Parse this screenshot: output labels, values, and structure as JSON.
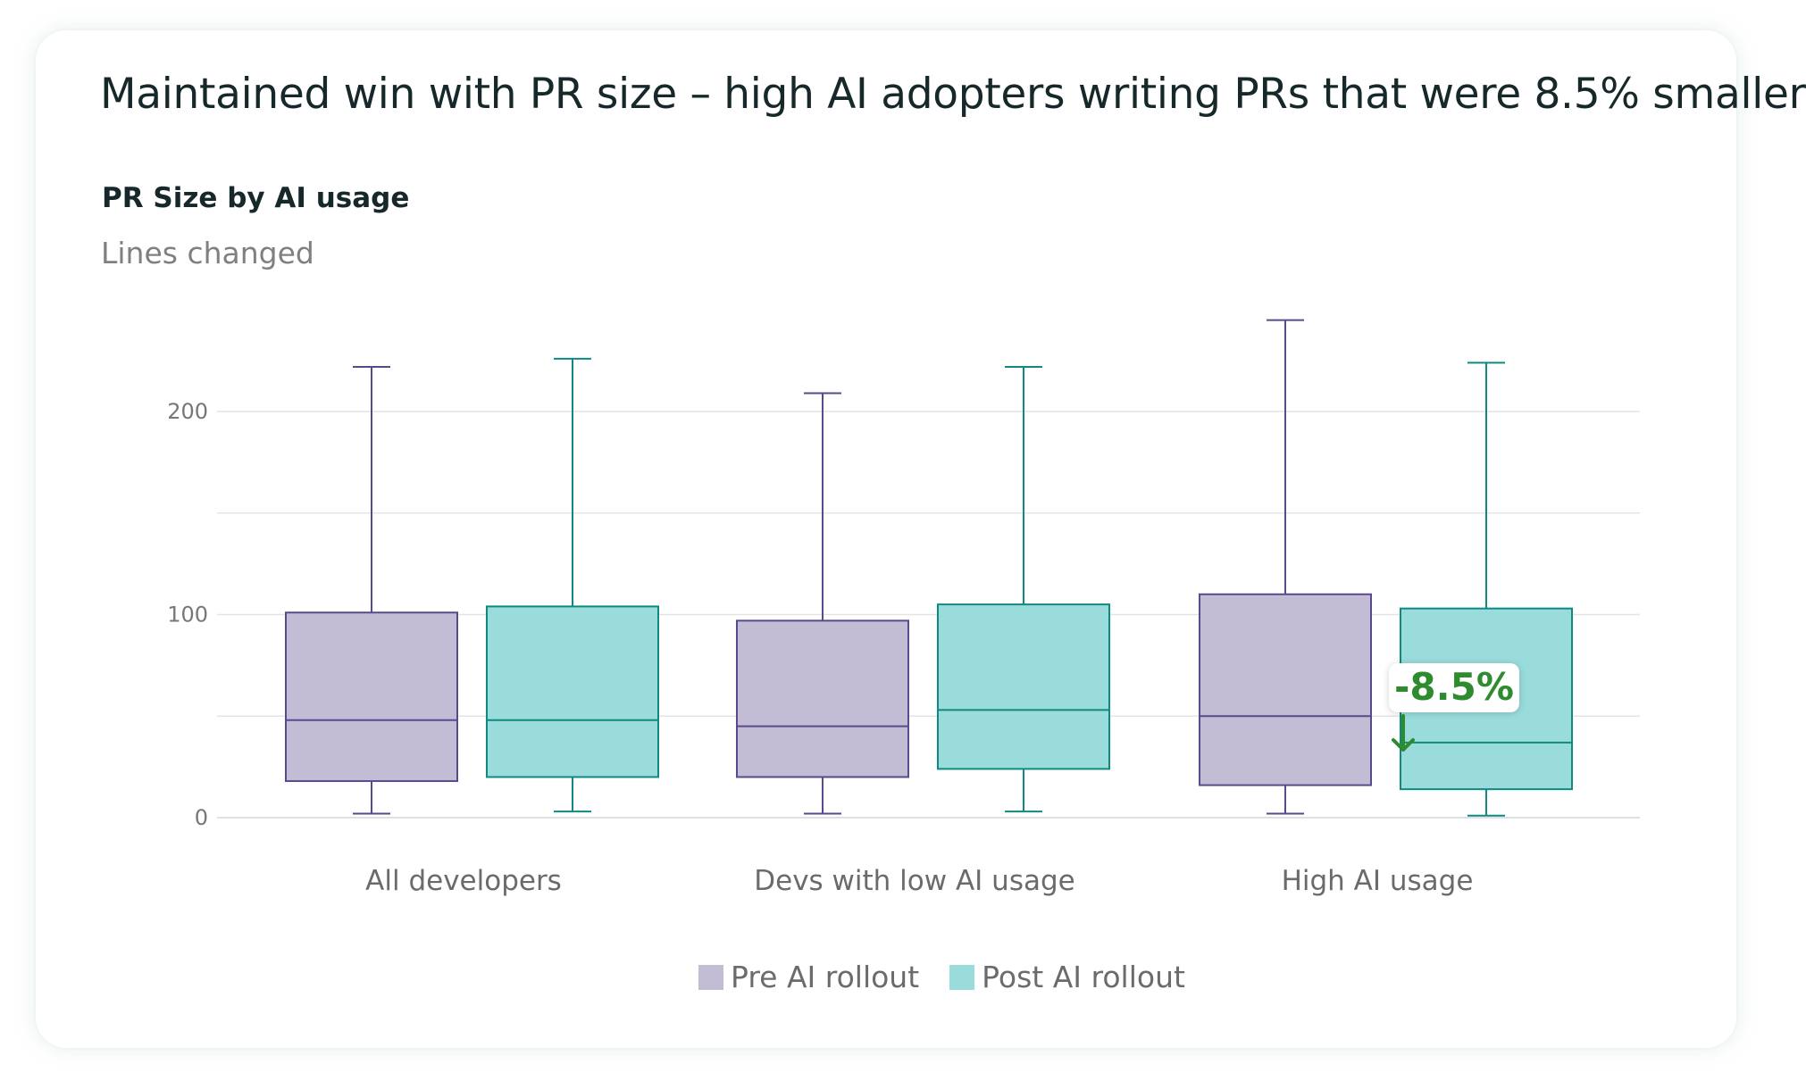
{
  "title": "Maintained win with PR size – high AI adopters writing PRs that were 8.5% smaller",
  "chart_data": {
    "type": "boxplot",
    "title": "PR Size by AI usage",
    "ylabel": "Lines changed",
    "xlabel": "",
    "ylim": [
      0,
      245
    ],
    "yticks": [
      0,
      100,
      200
    ],
    "grid": true,
    "categories": [
      "All developers",
      "Devs with low AI usage",
      "High AI usage"
    ],
    "series": [
      {
        "name": "Pre AI rollout",
        "color": "#c2bcd4",
        "stroke": "#5b4a8b",
        "boxes": [
          {
            "min": 2,
            "q1": 18,
            "median": 48,
            "q3": 101,
            "max": 222
          },
          {
            "min": 2,
            "q1": 20,
            "median": 45,
            "q3": 97,
            "max": 209
          },
          {
            "min": 2,
            "q1": 16,
            "median": 50,
            "q3": 110,
            "max": 245
          }
        ]
      },
      {
        "name": "Post AI rollout",
        "color": "#9adcdb",
        "stroke": "#0e8a80",
        "boxes": [
          {
            "min": 3,
            "q1": 20,
            "median": 48,
            "q3": 104,
            "max": 226
          },
          {
            "min": 3,
            "q1": 24,
            "median": 53,
            "q3": 105,
            "max": 222
          },
          {
            "min": 1,
            "q1": 14,
            "median": 37,
            "q3": 103,
            "max": 224
          }
        ]
      }
    ],
    "legend_position": "bottom",
    "annotation": {
      "text": "-8.5%",
      "category": "High AI usage",
      "color": "#2e8b2e",
      "icon": "arrow-down-icon"
    }
  }
}
